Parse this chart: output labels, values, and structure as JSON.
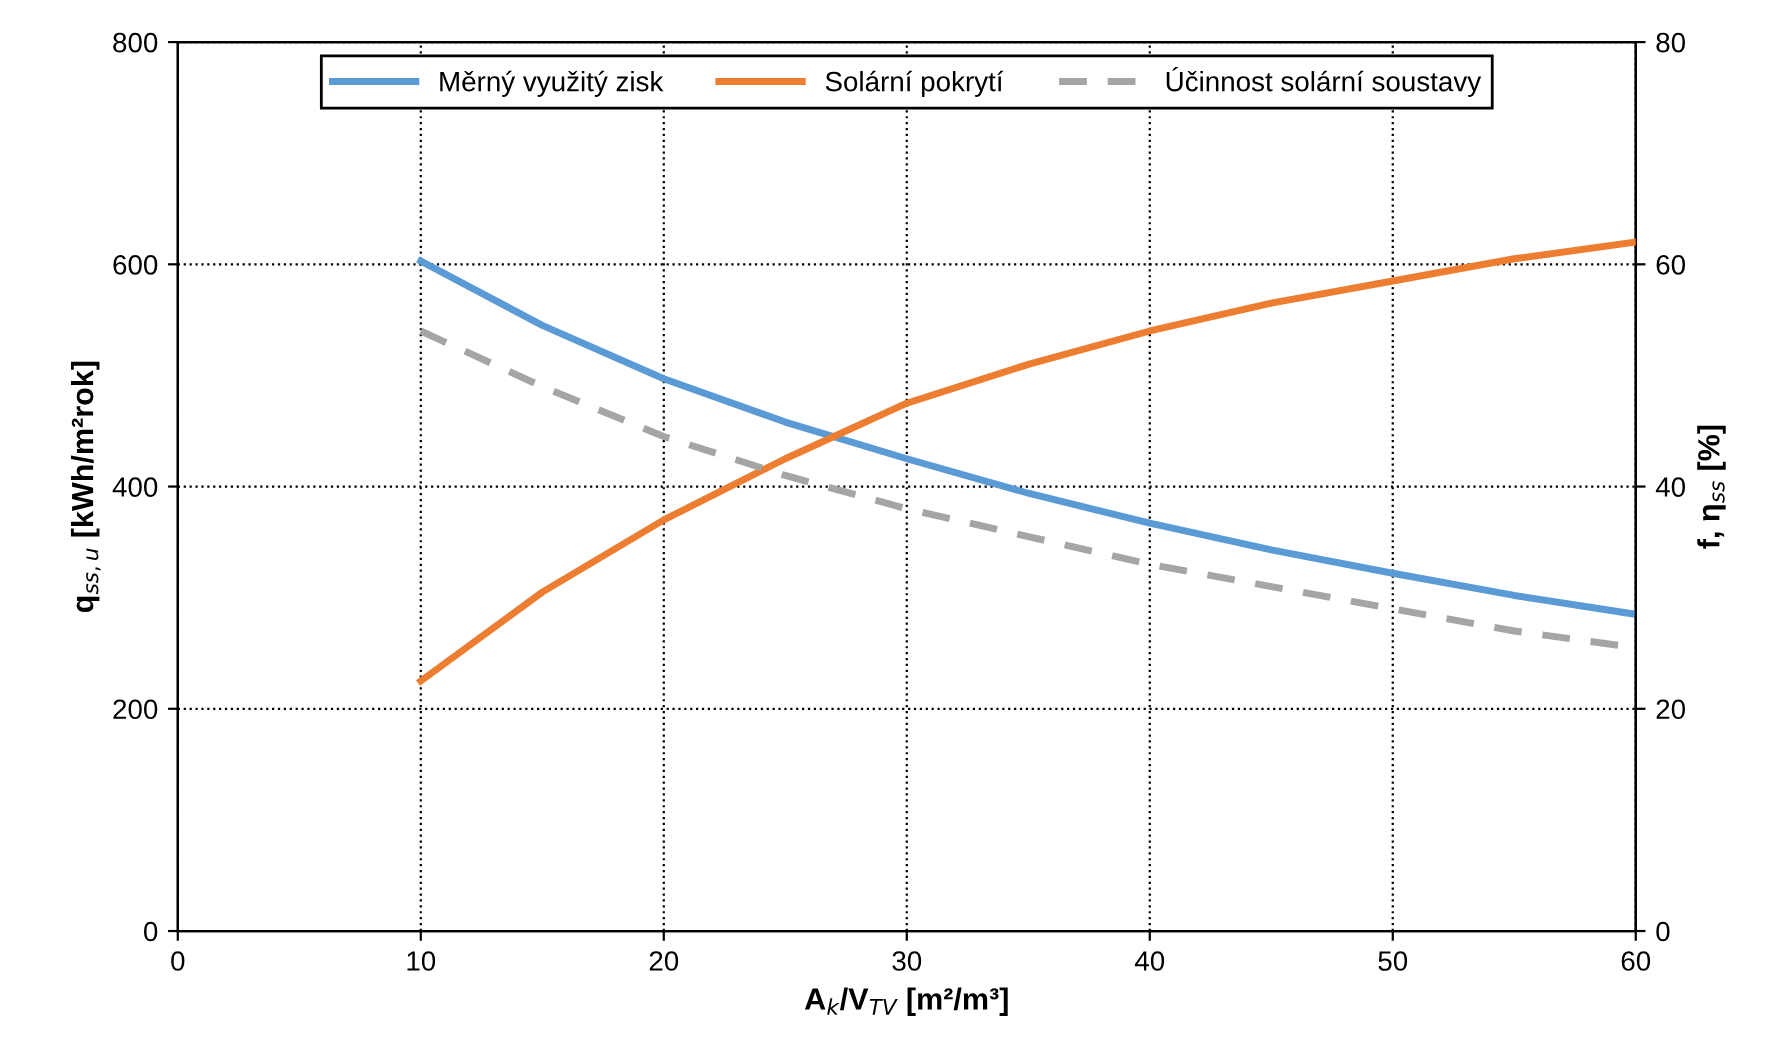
{
  "chart_data": {
    "type": "line",
    "xlabel": "A$_{k}$/V$_{TV}$ [m²/m³]",
    "ylabel": "q$_{ss,u}$ [kWh/m²rok]",
    "y2label": "f, η$_{ss}$ [%]",
    "x": [
      10,
      15,
      20,
      25,
      30,
      35,
      40,
      45,
      50,
      55,
      60
    ],
    "series": [
      {
        "name": "Měrný využitý zisk",
        "color": "#5b9bd5",
        "axis": "y",
        "line_style": "solid",
        "values": [
          603,
          545,
          497,
          458,
          425,
          394,
          367,
          343,
          322,
          302,
          285
        ]
      },
      {
        "name": "Solární pokrytí",
        "color": "#ed7d31",
        "axis": "y2",
        "line_style": "solid",
        "values": [
          22.5,
          30.5,
          37,
          42.5,
          47.5,
          51,
          54,
          56.5,
          58.5,
          60.5,
          62
        ]
      },
      {
        "name": "Účinnost solární soustavy",
        "color": "#a5a5a5",
        "axis": "y2",
        "line_style": "dashed",
        "values": [
          54,
          49,
          44.5,
          41,
          38,
          35.5,
          33,
          31,
          29,
          27,
          25.5
        ]
      }
    ],
    "xlim": [
      0,
      60
    ],
    "xticks": [
      0,
      10,
      20,
      30,
      40,
      50,
      60
    ],
    "ylim": [
      0,
      800
    ],
    "yticks": [
      0,
      200,
      400,
      600,
      800
    ],
    "y2lim": [
      0,
      80
    ],
    "y2ticks": [
      0,
      20,
      40,
      60,
      80
    ],
    "grid": true,
    "legend": "top",
    "marker": "none"
  }
}
